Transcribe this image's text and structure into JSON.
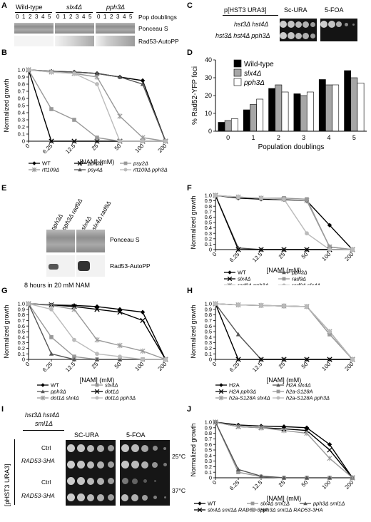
{
  "panel_letters": [
    "A",
    "B",
    "C",
    "D",
    "E",
    "F",
    "G",
    "H",
    "I",
    "J"
  ],
  "A": {
    "strains": [
      "Wild-type",
      "slx4Δ",
      "pph3Δ"
    ],
    "timepoints": [
      "0",
      "1",
      "2",
      "3",
      "4",
      "5"
    ],
    "axis_label": "Pop doublings",
    "rows": [
      "Ponceau S",
      "Rad53-AutoPP"
    ]
  },
  "C": {
    "plasmid": "p[HST3 URA3]",
    "media": [
      "Sc-URA",
      "5-FOA"
    ],
    "strains": [
      "hst3Δ hst4Δ",
      "hst3Δ hst4Δ pph3Δ"
    ]
  },
  "E": {
    "lanes": [
      "pph3Δ",
      "pph3Δ rad9Δ",
      "slx4Δ",
      "slx4Δ rad9Δ"
    ],
    "rows": [
      "Ponceau S",
      "Rad53-AutoPP"
    ],
    "caption": "8 hours in 20 mM NAM"
  },
  "I": {
    "genotype_line1": "hst3Δ hst4Δ",
    "genotype_line2": "sml1Δ",
    "plasmid": "[pHST3 URA3]",
    "media": [
      "SC-URA",
      "5-FOA"
    ],
    "rows": [
      "Ctrl",
      "RAD53-3HA",
      "Ctrl",
      "RAD53-3HA"
    ],
    "temps": [
      "25°C",
      "37°C"
    ]
  },
  "chart_data": [
    {
      "panel": "B",
      "type": "line",
      "x": [
        "0",
        "6.25",
        "12.5",
        "25",
        "50",
        "100",
        "200"
      ],
      "xlabel": "[NAM] (mM)",
      "ylabel": "Normalized growth",
      "ylim": [
        0,
        1.0
      ],
      "yticks": [
        "0",
        "0.1",
        "0.2",
        "0.3",
        "0.4",
        "0.5",
        "0.6",
        "0.7",
        "0.8",
        "0.9",
        "1.0"
      ],
      "series": [
        {
          "name": "WT",
          "marker": "diamond",
          "color": "#000000",
          "values": [
            1.0,
            0.98,
            0.97,
            0.95,
            0.9,
            0.85,
            0.0
          ]
        },
        {
          "name": "pph3Δ",
          "marker": "x",
          "color": "#000000",
          "values": [
            1.0,
            0.0,
            0.0,
            0.0,
            0.0,
            0.0,
            0.0
          ]
        },
        {
          "name": "psy2Δ",
          "marker": "square",
          "color": "#999999",
          "values": [
            1.0,
            0.45,
            0.3,
            0.05,
            0.0,
            0.0,
            0.0
          ]
        },
        {
          "name": "rtt109Δ",
          "marker": "asterisk",
          "color": "#999999",
          "values": [
            1.0,
            0.97,
            0.95,
            0.9,
            0.35,
            0.05,
            0.0
          ]
        },
        {
          "name": "psy4Δ",
          "marker": "triangle",
          "color": "#555555",
          "values": [
            1.0,
            0.98,
            0.97,
            0.95,
            0.9,
            0.8,
            0.0
          ]
        },
        {
          "name": "rtt109Δ pph3Δ",
          "marker": "circle",
          "color": "#bbbbbb",
          "values": [
            1.0,
            0.97,
            0.95,
            0.8,
            0.0,
            0.0,
            0.0
          ]
        }
      ]
    },
    {
      "panel": "D",
      "type": "bar",
      "categories": [
        "0",
        "1",
        "2",
        "3",
        "4",
        "5"
      ],
      "xlabel": "Population doublings",
      "ylabel": "% Rad52-YFP foci",
      "ylim": [
        0,
        40
      ],
      "yticks": [
        "0",
        "10",
        "20",
        "30",
        "40"
      ],
      "series": [
        {
          "name": "Wild-type",
          "color": "#000000",
          "values": [
            5,
            12,
            24,
            21,
            29,
            34
          ]
        },
        {
          "name": "slx4Δ",
          "color": "#a6a6a6",
          "values": [
            6,
            15,
            26,
            20,
            26,
            30
          ]
        },
        {
          "name": "pph3Δ",
          "color": "#ffffff",
          "values": [
            7,
            18,
            22,
            22,
            26,
            27
          ]
        }
      ]
    },
    {
      "panel": "F",
      "type": "line",
      "x": [
        "0",
        "6.25",
        "12.5",
        "25",
        "50",
        "100",
        "200"
      ],
      "xlabel": "[NAM] (mM)",
      "ylabel": "Normalized growth",
      "ylim": [
        0,
        1.0
      ],
      "yticks": [
        "0",
        "0.1",
        "0.2",
        "0.3",
        "0.4",
        "0.5",
        "0.6",
        "0.7",
        "0.8",
        "0.9",
        "1.0"
      ],
      "series": [
        {
          "name": "WT",
          "marker": "diamond",
          "color": "#000000",
          "values": [
            1.0,
            0.95,
            0.93,
            0.92,
            0.9,
            0.45,
            0.0
          ]
        },
        {
          "name": "pph3Δ",
          "marker": "triangle",
          "color": "#555555",
          "values": [
            1.0,
            0.03,
            0.0,
            0.0,
            0.0,
            0.0,
            0.0
          ]
        },
        {
          "name": "slx4Δ",
          "marker": "x",
          "color": "#000000",
          "values": [
            1.0,
            0.0,
            0.0,
            0.0,
            0.0,
            0.0,
            0.0
          ]
        },
        {
          "name": "rad9Δ",
          "marker": "square",
          "color": "#999999",
          "values": [
            1.0,
            0.97,
            0.95,
            0.95,
            0.93,
            0.05,
            0.0
          ]
        },
        {
          "name": "rad9Δ pph3Δ",
          "marker": "asterisk",
          "color": "#999999",
          "values": [
            1.0,
            0.97,
            0.95,
            0.93,
            0.9,
            0.05,
            0.0
          ]
        },
        {
          "name": "rad9Δ slx4Δ",
          "marker": "circle",
          "color": "#bbbbbb",
          "values": [
            1.0,
            0.97,
            0.95,
            0.93,
            0.3,
            0.0,
            0.0
          ]
        }
      ]
    },
    {
      "panel": "G",
      "type": "line",
      "x": [
        "0",
        "6.25",
        "12.5",
        "25",
        "50",
        "100",
        "200"
      ],
      "xlabel": "[NAM] (mM)",
      "ylabel": "Normalized growth",
      "ylim": [
        0,
        1.0
      ],
      "yticks": [
        "0",
        "0.1",
        "0.2",
        "0.3",
        "0.4",
        "0.5",
        "0.6",
        "0.7",
        "0.8",
        "0.9",
        "1.0"
      ],
      "series": [
        {
          "name": "WT",
          "marker": "diamond",
          "color": "#000000",
          "values": [
            1.0,
            0.98,
            0.97,
            0.95,
            0.9,
            0.85,
            0.0
          ]
        },
        {
          "name": "slx4Δ",
          "marker": "square",
          "color": "#999999",
          "values": [
            1.0,
            0.4,
            0.05,
            0.0,
            0.0,
            0.0,
            0.0
          ]
        },
        {
          "name": "pph3Δ",
          "marker": "triangle",
          "color": "#555555",
          "values": [
            1.0,
            0.1,
            0.0,
            0.0,
            0.0,
            0.0,
            0.0
          ]
        },
        {
          "name": "dot1Δ",
          "marker": "x",
          "color": "#000000",
          "values": [
            1.0,
            0.98,
            0.95,
            0.9,
            0.85,
            0.7,
            0.0
          ]
        },
        {
          "name": "dot1Δ slx4Δ",
          "marker": "asterisk",
          "color": "#999999",
          "values": [
            1.0,
            0.97,
            0.9,
            0.35,
            0.25,
            0.15,
            0.0
          ]
        },
        {
          "name": "dot1Δ pph3Δ",
          "marker": "circle",
          "color": "#bbbbbb",
          "values": [
            1.0,
            0.9,
            0.35,
            0.1,
            0.05,
            0.0,
            0.0
          ]
        }
      ]
    },
    {
      "panel": "H",
      "type": "line",
      "x": [
        "0",
        "6.25",
        "12.5",
        "25",
        "50",
        "100",
        "200"
      ],
      "xlabel": "[NAM] (mM)",
      "ylabel": "Normalized growth",
      "ylim": [
        0,
        1.0
      ],
      "yticks": [
        "0",
        "0.1",
        "0.2",
        "0.3",
        "0.4",
        "0.5",
        "0.6",
        "0.7",
        "0.8",
        "0.9",
        "1.0"
      ],
      "series": [
        {
          "name": "H2A",
          "marker": "diamond",
          "color": "#000000",
          "values": [
            1.0,
            0.98,
            0.97,
            0.96,
            0.95,
            0.5,
            0.0
          ]
        },
        {
          "name": "H2A slx4Δ",
          "marker": "triangle",
          "color": "#555555",
          "values": [
            1.0,
            0.45,
            0.0,
            0.0,
            0.0,
            0.0,
            0.0
          ]
        },
        {
          "name": "H2A pph3Δ",
          "marker": "x",
          "color": "#000000",
          "values": [
            1.0,
            0.0,
            0.0,
            0.0,
            0.0,
            0.0,
            0.0
          ]
        },
        {
          "name": "h2a-S128A",
          "marker": "square",
          "color": "#999999",
          "values": [
            1.0,
            0.98,
            0.97,
            0.96,
            0.95,
            0.45,
            0.0
          ]
        },
        {
          "name": "h2a-S128A slx4Δ",
          "marker": "asterisk",
          "color": "#999999",
          "values": [
            1.0,
            0.98,
            0.97,
            0.96,
            0.95,
            0.5,
            0.0
          ]
        },
        {
          "name": "h2a-S128A pph3Δ",
          "marker": "circle",
          "color": "#bbbbbb",
          "values": [
            1.0,
            0.98,
            0.97,
            0.96,
            0.95,
            0.5,
            0.0
          ]
        }
      ]
    },
    {
      "panel": "J",
      "type": "line",
      "x": [
        "0",
        "6.25",
        "12.5",
        "25",
        "50",
        "100",
        "200"
      ],
      "xlabel": "[NAM] (mM)",
      "ylabel": "Normalized growth",
      "ylim": [
        0,
        1.0
      ],
      "yticks": [
        "0",
        "0.1",
        "0.2",
        "0.3",
        "0.4",
        "0.5",
        "0.6",
        "0.7",
        "0.8",
        "0.9",
        "1.0"
      ],
      "series": [
        {
          "name": "WT",
          "marker": "diamond",
          "color": "#000000",
          "values": [
            1.0,
            0.95,
            0.93,
            0.92,
            0.9,
            0.6,
            0.0
          ]
        },
        {
          "name": "slx4Δ sml1Δ",
          "marker": "square",
          "color": "#999999",
          "values": [
            1.0,
            0.1,
            0.02,
            0.0,
            0.0,
            0.0,
            0.0
          ]
        },
        {
          "name": "pph3Δ sml1Δ",
          "marker": "triangle",
          "color": "#555555",
          "values": [
            1.0,
            0.15,
            0.03,
            0.0,
            0.0,
            0.0,
            0.0
          ]
        },
        {
          "name": "slx4Δ sml1Δ RAD53-3HA",
          "marker": "x",
          "color": "#000000",
          "values": [
            1.0,
            0.92,
            0.9,
            0.88,
            0.85,
            0.5,
            0.0
          ]
        },
        {
          "name": "pph3Δ sml1Δ RAD53-3HA",
          "marker": "asterisk",
          "color": "#999999",
          "values": [
            1.0,
            0.92,
            0.9,
            0.85,
            0.8,
            0.35,
            0.0
          ]
        }
      ]
    }
  ]
}
